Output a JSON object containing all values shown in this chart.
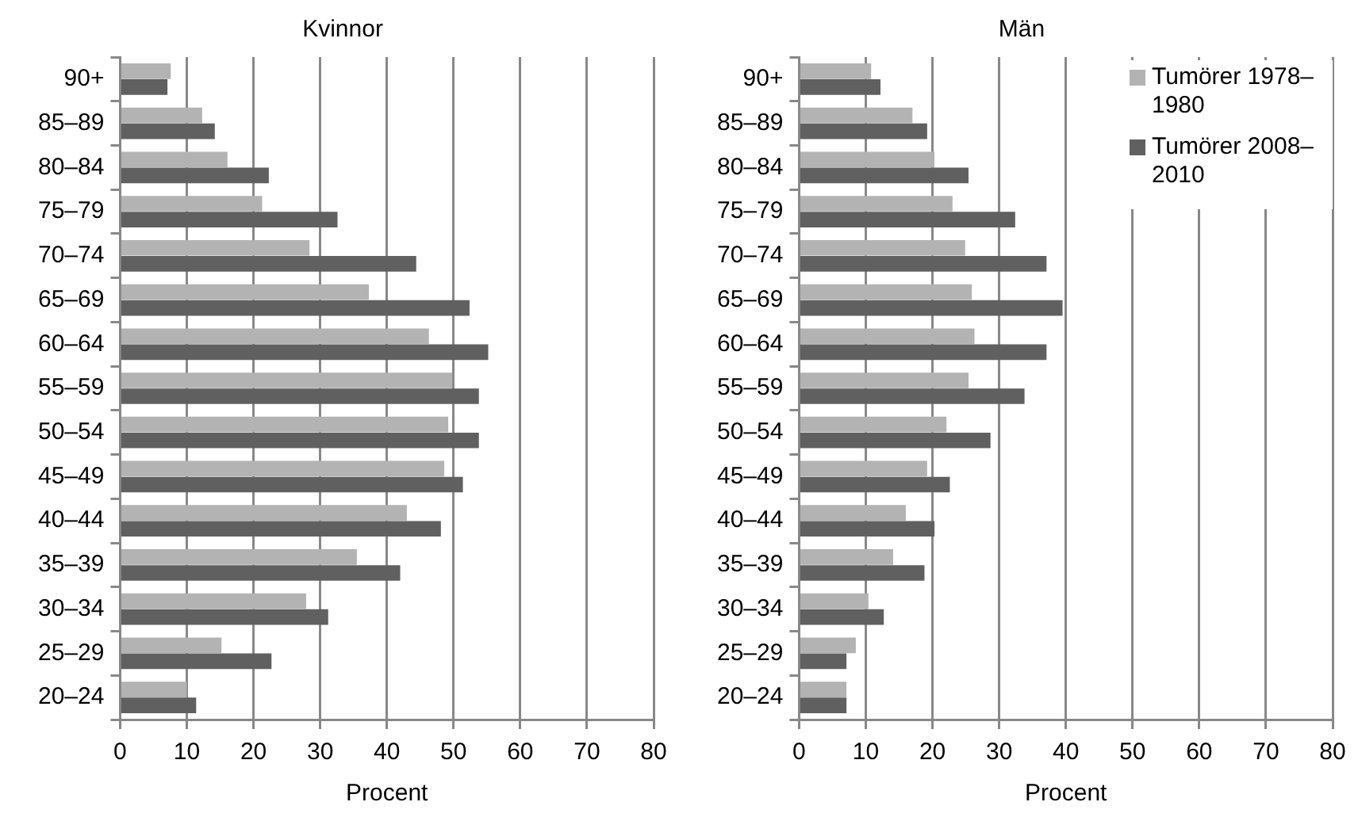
{
  "chart_data": [
    {
      "type": "bar",
      "orientation": "horizontal",
      "title": "Kvinnor",
      "xlabel": "Procent",
      "categories": [
        "90+",
        "85–89",
        "80–84",
        "75–79",
        "70–74",
        "65–69",
        "60–64",
        "55–59",
        "50–54",
        "45–49",
        "40–44",
        "35–39",
        "30–34",
        "25–29",
        "20–24"
      ],
      "series": [
        {
          "color": "#b3b3b3",
          "values": [
            7.6,
            12.3,
            16.1,
            21.3,
            28.4,
            37.3,
            46.3,
            49.8,
            49.2,
            48.6,
            43.0,
            35.5,
            27.9,
            15.2,
            10.0
          ]
        },
        {
          "color": "#606060",
          "values": [
            7.1,
            14.2,
            22.3,
            32.6,
            44.4,
            52.4,
            55.2,
            53.8,
            53.8,
            51.4,
            48.1,
            42.0,
            31.2,
            22.7,
            11.4
          ]
        }
      ],
      "xlim": [
        0,
        80
      ],
      "xticks": [
        0,
        10,
        20,
        30,
        40,
        50,
        60,
        70,
        80
      ],
      "grid": "x"
    },
    {
      "type": "bar",
      "orientation": "horizontal",
      "title": "Män",
      "xlabel": "Procent",
      "categories": [
        "90+",
        "85–89",
        "80–84",
        "75–79",
        "70–74",
        "65–69",
        "60–64",
        "55–59",
        "50–54",
        "45–49",
        "40–44",
        "35–39",
        "30–34",
        "25–29",
        "20–24"
      ],
      "series": [
        {
          "name": "Tumörer 1978–1980",
          "color": "#b3b3b3",
          "values": [
            10.8,
            17.0,
            20.3,
            23.0,
            24.9,
            25.9,
            26.3,
            25.4,
            22.1,
            19.2,
            16.0,
            14.1,
            10.4,
            8.5,
            7.1
          ]
        },
        {
          "name": "Tumörer 2008–2010",
          "color": "#606060",
          "values": [
            12.2,
            19.2,
            25.4,
            32.4,
            37.1,
            39.5,
            37.1,
            33.8,
            28.7,
            22.6,
            20.3,
            18.8,
            12.7,
            7.1,
            7.1
          ]
        }
      ],
      "xlim": [
        0,
        80
      ],
      "xticks": [
        0,
        10,
        20,
        30,
        40,
        50,
        60,
        70,
        80
      ],
      "grid": "x",
      "legend": "top right"
    }
  ]
}
